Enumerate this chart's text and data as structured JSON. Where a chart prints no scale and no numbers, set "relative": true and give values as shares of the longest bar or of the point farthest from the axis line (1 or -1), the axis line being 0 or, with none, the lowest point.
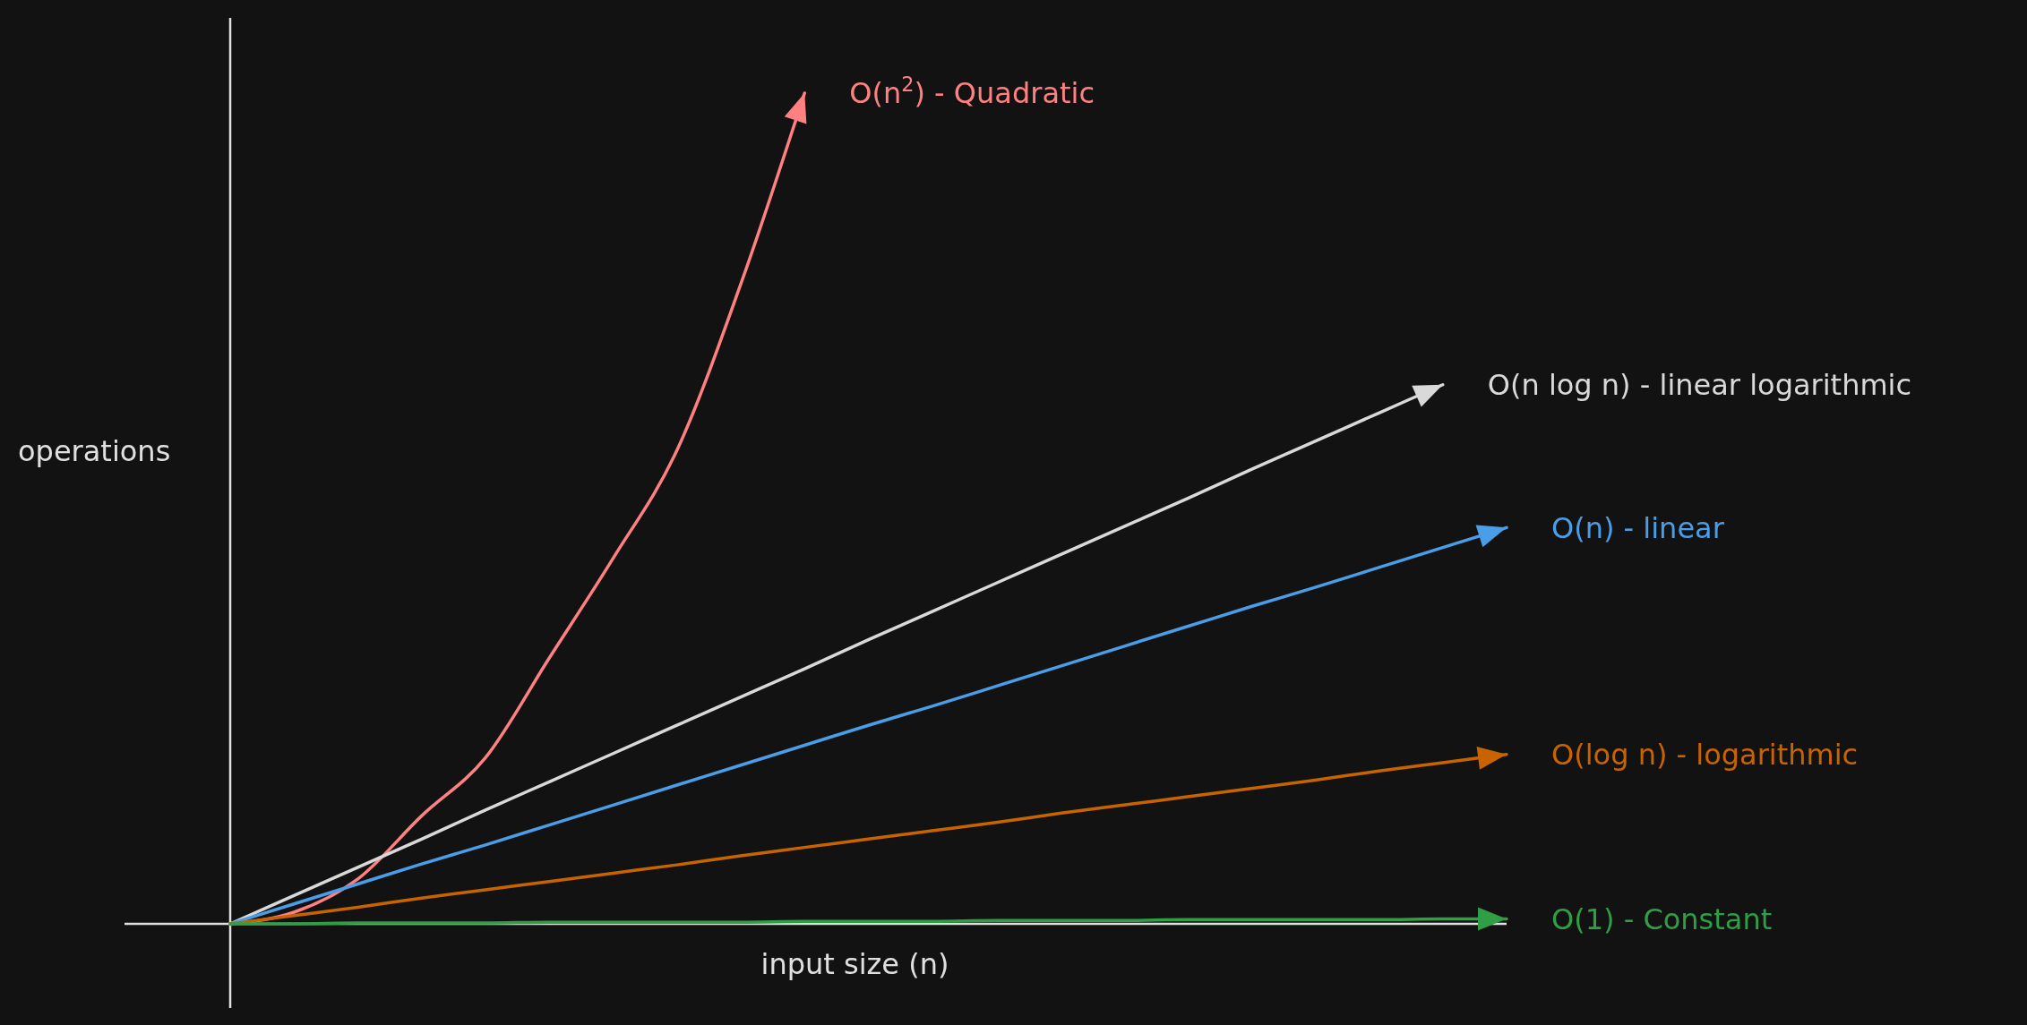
{
  "chart_data": {
    "type": "line",
    "relative": true,
    "legend": "right",
    "xlabel": "input size (n)",
    "ylabel": "operations",
    "categories": [
      null,
      null,
      null,
      null,
      null,
      null,
      null,
      null,
      null,
      null,
      null,
      null,
      null,
      null,
      null,
      null,
      null,
      null,
      null,
      null,
      null
    ],
    "series": [
      {
        "name": "O(n$^{2}$) - Quadratic",
        "color": "#ff8080",
        "values": [
          0,
          0.014,
          0.054,
          0.13,
          0.2,
          0.32,
          0.44,
          0.57,
          0.77,
          1,
          null,
          null,
          null,
          null,
          null,
          null,
          null,
          null,
          null,
          null,
          null
        ]
      },
      {
        "name": "O(n log n) - linear logarithmic",
        "color": "#d9d9d9",
        "values": [
          0,
          0.034,
          0.068,
          0.102,
          0.137,
          0.171,
          0.205,
          0.239,
          0.273,
          0.307,
          0.342,
          0.376,
          0.41,
          0.444,
          0.478,
          0.512,
          0.547,
          0.581,
          0.615,
          0.649,
          null
        ]
      },
      {
        "name": "O(n) - linear",
        "color": "#4a9ee8",
        "values": [
          0,
          0.024,
          0.048,
          0.072,
          0.095,
          0.119,
          0.143,
          0.167,
          0.191,
          0.215,
          0.239,
          0.262,
          0.286,
          0.31,
          0.334,
          0.358,
          0.382,
          0.405,
          0.429,
          0.453,
          0.477
        ]
      },
      {
        "name": "O(log n) - logarithmic",
        "color": "#c86400",
        "values": [
          0,
          0.01,
          0.02,
          0.031,
          0.041,
          0.051,
          0.061,
          0.071,
          0.082,
          0.092,
          0.102,
          0.112,
          0.122,
          0.133,
          0.143,
          0.153,
          0.163,
          0.173,
          0.184,
          0.194,
          0.204
        ]
      },
      {
        "name": "O(1) - Constant",
        "color": "#2f9e44",
        "values": [
          0,
          0,
          0.001,
          0.001,
          0.001,
          0.002,
          0.002,
          0.002,
          0.002,
          0.003,
          0.003,
          0.003,
          0.004,
          0.004,
          0.004,
          0.005,
          0.005,
          0.005,
          0.005,
          0.006,
          0.006
        ]
      }
    ]
  }
}
